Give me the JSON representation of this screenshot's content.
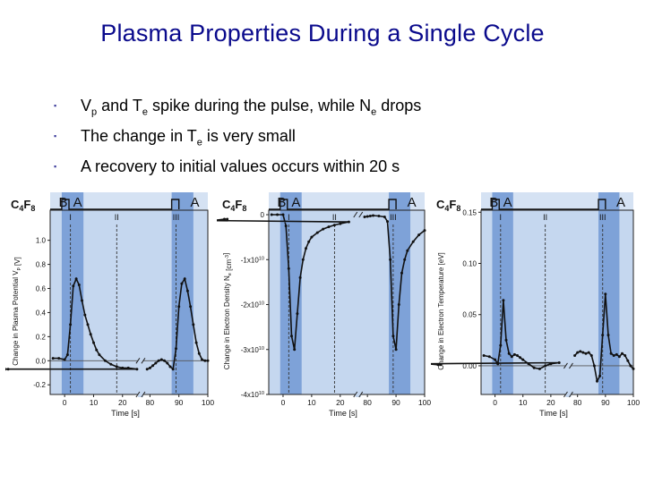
{
  "slide": {
    "title": "Plasma Properties During a Single Cycle",
    "bullets": [
      {
        "parts": [
          {
            "t": "V"
          },
          {
            "sub": "p"
          },
          {
            "t": " and T"
          },
          {
            "sub": "e"
          },
          {
            "t": " spike during the pulse, while N"
          },
          {
            "sub": "e"
          },
          {
            "t": " drops"
          }
        ]
      },
      {
        "parts": [
          {
            "t": "The change in T"
          },
          {
            "sub": "e"
          },
          {
            "t": " is very small"
          }
        ]
      },
      {
        "parts": [
          {
            "t": "A recovery to initial values occurs within 20 s"
          }
        ]
      }
    ],
    "bullet_marker": "▪"
  },
  "colors": {
    "title": "#0a0a8c",
    "bg_light": "#c5d7ef",
    "bg_dark": "#7ea2d8",
    "header": "#d5e2f3",
    "line": "#111111"
  },
  "chart_data": [
    {
      "type": "line",
      "species_label": [
        "C",
        "4",
        "F",
        "8"
      ],
      "region_labels": [
        "A",
        "B",
        "A"
      ],
      "roman_labels": [
        "I",
        "II",
        "III"
      ],
      "ylabel": "Change in Plasma Potential V_p [V]",
      "ylabel_parts": [
        {
          "t": "Change in Plasma Potential V"
        },
        {
          "sub": "p"
        },
        {
          "t": " [V]"
        }
      ],
      "xlabel": "Time [s]",
      "ylim": [
        -0.28,
        1.25
      ],
      "yticks": [
        -0.2,
        0.0,
        0.2,
        0.4,
        0.6,
        0.8,
        1.0
      ],
      "ytick_labels": [
        "-0.2",
        "0.0",
        "0.2",
        "0.4",
        "0.6",
        "0.8",
        "1.0"
      ],
      "xticks": [
        0,
        10,
        20,
        80,
        90,
        100
      ],
      "xtick_labels": [
        "0",
        "10",
        "20",
        "80",
        "90",
        "100"
      ],
      "baseline": 0.0,
      "series": [
        {
          "x": [
            -4,
            -2,
            0,
            1,
            2,
            3,
            4,
            5,
            6,
            7,
            8,
            9,
            10,
            11,
            12,
            14,
            16,
            18,
            20,
            22,
            25,
            28,
            30,
            31
          ],
          "y": [
            0.02,
            0.02,
            0.01,
            0.05,
            0.3,
            0.62,
            0.68,
            0.63,
            0.5,
            0.38,
            0.3,
            0.22,
            0.15,
            0.09,
            0.05,
            0.0,
            -0.03,
            -0.05,
            -0.06,
            -0.06,
            -0.07,
            -0.07,
            -0.07,
            -0.07
          ]
        },
        {
          "x": [
            79,
            80,
            81,
            82,
            83,
            84,
            85,
            86,
            87,
            88,
            89,
            90,
            91,
            92,
            93,
            94,
            95,
            96,
            97,
            98,
            99,
            100
          ],
          "y": [
            -0.07,
            -0.06,
            -0.04,
            -0.02,
            0.0,
            0.01,
            0.0,
            -0.02,
            -0.05,
            -0.07,
            0.1,
            0.45,
            0.64,
            0.68,
            0.58,
            0.45,
            0.3,
            0.15,
            0.06,
            0.01,
            0.0,
            0.0
          ]
        }
      ]
    },
    {
      "type": "line",
      "species_label": [
        "C",
        "4",
        "F",
        "8"
      ],
      "region_labels": [
        "A",
        "B",
        "A"
      ],
      "roman_labels": [
        "I",
        "II",
        "III"
      ],
      "ylabel": "Change in Electron Density N_e [cm^-3]",
      "ylabel_parts": [
        {
          "t": "Change in Electron Density N"
        },
        {
          "sub": "e"
        },
        {
          "t": " [cm"
        },
        {
          "sup": "-3"
        },
        {
          "t": "]"
        }
      ],
      "xlabel": "Time [s]",
      "ylim": [
        -40000000000.0,
        1000000000.0
      ],
      "yticks": [
        0,
        -10000000000.0,
        -20000000000.0,
        -30000000000.0,
        -40000000000.0
      ],
      "ytick_labels": [
        [
          {
            "t": "0"
          }
        ],
        [
          {
            "t": "-1x10"
          },
          {
            "sup": "10"
          }
        ],
        [
          {
            "t": "-2x10"
          },
          {
            "sup": "10"
          }
        ],
        [
          {
            "t": "-3x10"
          },
          {
            "sup": "10"
          }
        ],
        [
          {
            "t": "-4x10"
          },
          {
            "sup": "10"
          }
        ]
      ],
      "xticks": [
        0,
        10,
        20,
        80,
        90,
        100
      ],
      "xtick_labels": [
        "0",
        "10",
        "20",
        "80",
        "90",
        "100"
      ],
      "series": [
        {
          "x": [
            -4,
            -2,
            0,
            1,
            2,
            3,
            4,
            5,
            6,
            7,
            8,
            9,
            10,
            12,
            14,
            16,
            18,
            20,
            23,
            26,
            30,
            31
          ],
          "y": [
            0,
            0,
            0,
            -2500000000.0,
            -12000000000.0,
            -27000000000.0,
            -30000000000.0,
            -22000000000.0,
            -14000000000.0,
            -10000000000.0,
            -7500000000.0,
            -6000000000.0,
            -5000000000.0,
            -4000000000.0,
            -3200000000.0,
            -2700000000.0,
            -2300000000.0,
            -2000000000.0,
            -1600000000.0,
            -1300000000.0,
            -1000000000.0,
            -1000000000.0
          ]
        },
        {
          "x": [
            79,
            80,
            81,
            82,
            84,
            86,
            87,
            88,
            89,
            90,
            91,
            92,
            93,
            94,
            96,
            98,
            100
          ],
          "y": [
            -500000000.0,
            -400000000.0,
            -300000000.0,
            -200000000.0,
            -300000000.0,
            -500000000.0,
            -1500000000.0,
            -10000000000.0,
            -27000000000.0,
            -30000000000.0,
            -20000000000.0,
            -13000000000.0,
            -10000000000.0,
            -8000000000.0,
            -6000000000.0,
            -4500000000.0,
            -3500000000.0
          ]
        }
      ]
    },
    {
      "type": "line",
      "species_label": [
        "C",
        "4",
        "F",
        "8"
      ],
      "region_labels": [
        "A",
        "B",
        "A"
      ],
      "roman_labels": [
        "I",
        "II",
        "III"
      ],
      "ylabel": "Change in Electron Temperature [eV]",
      "ylabel_parts": [
        {
          "t": "Change in Electron Temperature [eV]"
        }
      ],
      "xlabel": "Time [s]",
      "ylim": [
        -0.028,
        0.152
      ],
      "yticks": [
        0.0,
        0.05,
        0.1,
        0.15
      ],
      "ytick_labels": [
        "0.00",
        "0.05",
        "0.10",
        "0.15"
      ],
      "xticks": [
        0,
        10,
        20,
        80,
        90,
        100
      ],
      "xtick_labels": [
        "0",
        "10",
        "20",
        "80",
        "90",
        "100"
      ],
      "baseline": 0.0,
      "series": [
        {
          "x": [
            -4,
            -2,
            0,
            1,
            2,
            3,
            4,
            5,
            6,
            7,
            8,
            9,
            10,
            12,
            14,
            16,
            18,
            20,
            23,
            26,
            30,
            31
          ],
          "y": [
            0.01,
            0.009,
            0.006,
            0.002,
            0.02,
            0.064,
            0.025,
            0.012,
            0.009,
            0.011,
            0.01,
            0.008,
            0.006,
            0.002,
            -0.002,
            -0.003,
            0.0,
            0.002,
            0.003,
            0.002,
            0.001,
            0.001
          ]
        },
        {
          "x": [
            79,
            80,
            81,
            82,
            83,
            84,
            85,
            86,
            87,
            88,
            89,
            90,
            91,
            92,
            93,
            94,
            95,
            96,
            97,
            98,
            99,
            100
          ],
          "y": [
            0.01,
            0.013,
            0.014,
            0.013,
            0.012,
            0.013,
            0.01,
            0.0,
            -0.015,
            -0.01,
            0.03,
            0.07,
            0.03,
            0.012,
            0.01,
            0.011,
            0.009,
            0.012,
            0.01,
            0.005,
            0.0,
            -0.003
          ]
        }
      ]
    }
  ]
}
